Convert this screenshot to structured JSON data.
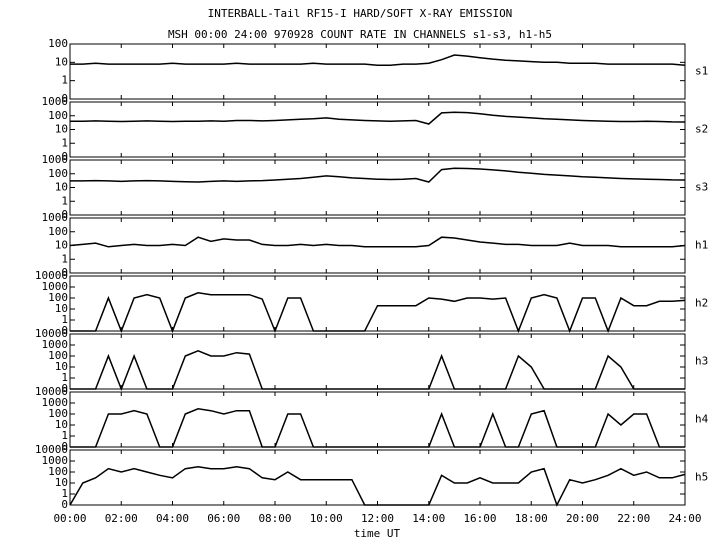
{
  "chart_data": {
    "type": "line",
    "title": "INTERBALL-Tail RF15-I HARD/SOFT X-RAY EMISSION",
    "subtitle": "MSH 00:00 24:00 970928  COUNT RATE IN CHANNELS s1-s3, h1-h5",
    "xlabel": "time UT",
    "yscale": "log",
    "color": "#000000",
    "grid": false,
    "xlim": [
      0,
      24
    ],
    "xticks": [
      {
        "value": 0,
        "label": "00:00"
      },
      {
        "value": 2,
        "label": "02:00"
      },
      {
        "value": 4,
        "label": "04:00"
      },
      {
        "value": 6,
        "label": "06:00"
      },
      {
        "value": 8,
        "label": "08:00"
      },
      {
        "value": 10,
        "label": "10:00"
      },
      {
        "value": 12,
        "label": "12:00"
      },
      {
        "value": 14,
        "label": "14:00"
      },
      {
        "value": 16,
        "label": "16:00"
      },
      {
        "value": 18,
        "label": "18:00"
      },
      {
        "value": 20,
        "label": "20:00"
      },
      {
        "value": 22,
        "label": "22:00"
      },
      {
        "value": 24,
        "label": "24:00"
      }
    ],
    "x": [
      0,
      0.5,
      1,
      1.5,
      2,
      2.5,
      3,
      3.5,
      4,
      4.5,
      5,
      5.5,
      6,
      6.5,
      7,
      7.5,
      8,
      8.5,
      9,
      9.5,
      10,
      10.5,
      11,
      11.5,
      12,
      12.5,
      13,
      13.5,
      14,
      14.5,
      15,
      15.5,
      16,
      16.5,
      17,
      17.5,
      18,
      18.5,
      19,
      19.5,
      20,
      20.5,
      21,
      21.5,
      22,
      22.5,
      23,
      23.5,
      24
    ],
    "panels": [
      {
        "name": "s1",
        "ylim": [
          0,
          100
        ],
        "yticks": [
          0,
          1,
          10,
          100
        ],
        "values": [
          8,
          8,
          9,
          8,
          8,
          8,
          8,
          8,
          9,
          8,
          8,
          8,
          8,
          9,
          8,
          8,
          8,
          8,
          8,
          9,
          8,
          8,
          8,
          8,
          7,
          7,
          8,
          8,
          9,
          14,
          25,
          22,
          18,
          15,
          13,
          12,
          11,
          10,
          10,
          9,
          9,
          9,
          8,
          8,
          8,
          8,
          8,
          8,
          7
        ]
      },
      {
        "name": "s2",
        "ylim": [
          0,
          1000
        ],
        "yticks": [
          0,
          1,
          10,
          100,
          1000
        ],
        "values": [
          40,
          40,
          42,
          40,
          38,
          40,
          42,
          40,
          38,
          40,
          40,
          42,
          40,
          45,
          45,
          42,
          45,
          50,
          55,
          60,
          70,
          55,
          50,
          45,
          42,
          40,
          42,
          45,
          25,
          160,
          180,
          170,
          140,
          110,
          90,
          80,
          70,
          60,
          55,
          50,
          45,
          42,
          40,
          38,
          38,
          40,
          38,
          36,
          35
        ]
      },
      {
        "name": "s3",
        "ylim": [
          0,
          1000
        ],
        "yticks": [
          0,
          1,
          10,
          100,
          1000
        ],
        "values": [
          30,
          30,
          32,
          30,
          28,
          30,
          32,
          30,
          28,
          26,
          25,
          28,
          30,
          28,
          30,
          32,
          35,
          40,
          45,
          55,
          70,
          60,
          50,
          45,
          40,
          38,
          40,
          45,
          25,
          200,
          250,
          240,
          220,
          190,
          160,
          130,
          110,
          90,
          80,
          70,
          60,
          55,
          50,
          45,
          42,
          40,
          38,
          36,
          35
        ]
      },
      {
        "name": "h1",
        "ylim": [
          0,
          1000
        ],
        "yticks": [
          0,
          1,
          10,
          100,
          1000
        ],
        "values": [
          10,
          12,
          15,
          8,
          10,
          12,
          10,
          10,
          12,
          10,
          40,
          20,
          30,
          25,
          25,
          12,
          10,
          10,
          12,
          10,
          12,
          10,
          10,
          8,
          8,
          8,
          8,
          8,
          10,
          40,
          35,
          25,
          18,
          15,
          12,
          12,
          10,
          10,
          10,
          15,
          10,
          10,
          10,
          8,
          8,
          8,
          8,
          8,
          10
        ]
      },
      {
        "name": "h2",
        "ylim": [
          0,
          10000
        ],
        "yticks": [
          0,
          1,
          10,
          100,
          1000,
          10000
        ],
        "values": [
          0,
          0,
          0,
          100,
          0,
          100,
          200,
          100,
          0,
          100,
          300,
          200,
          200,
          200,
          200,
          80,
          0,
          100,
          100,
          0,
          0,
          0,
          0,
          0,
          20,
          20,
          20,
          20,
          100,
          80,
          50,
          100,
          100,
          80,
          100,
          0,
          100,
          200,
          100,
          0,
          100,
          100,
          0,
          100,
          20,
          20,
          50,
          50,
          60
        ]
      },
      {
        "name": "h3",
        "ylim": [
          0,
          10000
        ],
        "yticks": [
          0,
          1,
          10,
          100,
          1000,
          10000
        ],
        "values": [
          0,
          0,
          0,
          100,
          0,
          100,
          0,
          0,
          0,
          100,
          300,
          100,
          100,
          200,
          150,
          0,
          0,
          0,
          0,
          0,
          0,
          0,
          0,
          0,
          0,
          0,
          0,
          0,
          0,
          100,
          0,
          0,
          0,
          0,
          0,
          100,
          10,
          0,
          0,
          0,
          0,
          0,
          100,
          10,
          0,
          0,
          0,
          0,
          0
        ]
      },
      {
        "name": "h4",
        "ylim": [
          0,
          10000
        ],
        "yticks": [
          0,
          1,
          10,
          100,
          1000,
          10000
        ],
        "values": [
          0,
          0,
          0,
          100,
          100,
          200,
          100,
          0,
          0,
          100,
          300,
          200,
          100,
          200,
          200,
          0,
          0,
          100,
          100,
          0,
          0,
          0,
          0,
          0,
          0,
          0,
          0,
          0,
          0,
          100,
          0,
          0,
          0,
          100,
          0,
          0,
          100,
          200,
          0,
          0,
          0,
          0,
          100,
          10,
          100,
          100,
          0,
          0,
          0
        ]
      },
      {
        "name": "h5",
        "ylim": [
          0,
          10000
        ],
        "yticks": [
          0,
          1,
          10,
          100,
          1000,
          10000
        ],
        "values": [
          0,
          10,
          30,
          200,
          100,
          200,
          100,
          50,
          30,
          200,
          300,
          200,
          200,
          300,
          200,
          30,
          20,
          100,
          20,
          20,
          20,
          20,
          20,
          0,
          0,
          0,
          0,
          0,
          0,
          50,
          10,
          10,
          30,
          10,
          10,
          10,
          100,
          200,
          0,
          20,
          10,
          20,
          50,
          200,
          50,
          100,
          30,
          30,
          60
        ]
      }
    ]
  }
}
